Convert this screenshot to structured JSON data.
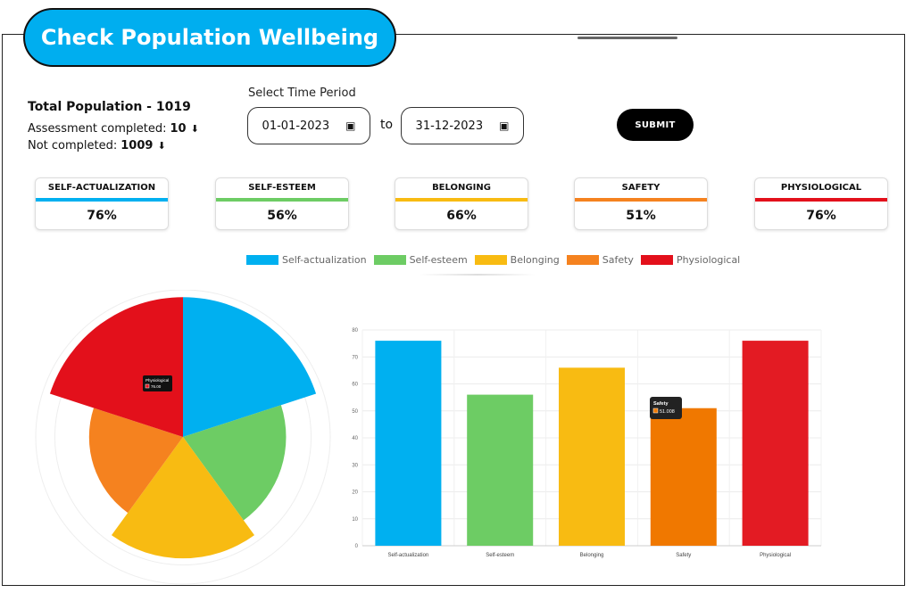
{
  "header": {
    "title": "Check Population Wellbeing"
  },
  "population": {
    "total_label": "Total Population - ",
    "total_value": "1019",
    "completed_label": "Assessment completed:",
    "completed_value": "10",
    "not_completed_label": "Not completed:",
    "not_completed_value": "1009"
  },
  "period": {
    "label": "Select Time Period",
    "start": "01-01-2023",
    "to_label": "to",
    "end": "31-12-2023",
    "submit_label": "SUBMIT"
  },
  "cards": [
    {
      "title": "SELF-ACTUALIZATION",
      "value": "76%",
      "color": "#00b0f0"
    },
    {
      "title": "SELF-ESTEEM",
      "value": "56%",
      "color": "#6dcc64"
    },
    {
      "title": "BELONGING",
      "value": "66%",
      "color": "#f8bb12"
    },
    {
      "title": "SAFETY",
      "value": "51%",
      "color": "#f5821f"
    },
    {
      "title": "PHYSIOLOGICAL",
      "value": "76%",
      "color": "#e3101b"
    }
  ],
  "chart_data": [
    {
      "type": "polar-area",
      "categories": [
        "Self-actualization",
        "Self-esteem",
        "Belonging",
        "Safety",
        "Physiological"
      ],
      "values": [
        76,
        56,
        66,
        51,
        76
      ],
      "colors": [
        "#00b0f0",
        "#6dcc64",
        "#f8bb12",
        "#f5821f",
        "#e3101b"
      ],
      "rmax": 80,
      "legend": "top",
      "tooltip": {
        "label": "Physiological",
        "value": "76.00"
      }
    },
    {
      "type": "bar",
      "categories": [
        "Self-actualization",
        "Self-esteem",
        "Belonging",
        "Safety",
        "Physiological"
      ],
      "values": [
        76,
        56,
        66,
        51,
        76
      ],
      "colors": [
        "#00b0f0",
        "#6dcc64",
        "#f8bb12",
        "#f07800",
        "#e31b23"
      ],
      "ylim": [
        0,
        80
      ],
      "yticks": [
        0,
        10,
        20,
        30,
        40,
        50,
        60,
        70,
        80
      ],
      "grid": true,
      "tooltip": {
        "label": "Safety",
        "value": "51.008"
      }
    }
  ]
}
